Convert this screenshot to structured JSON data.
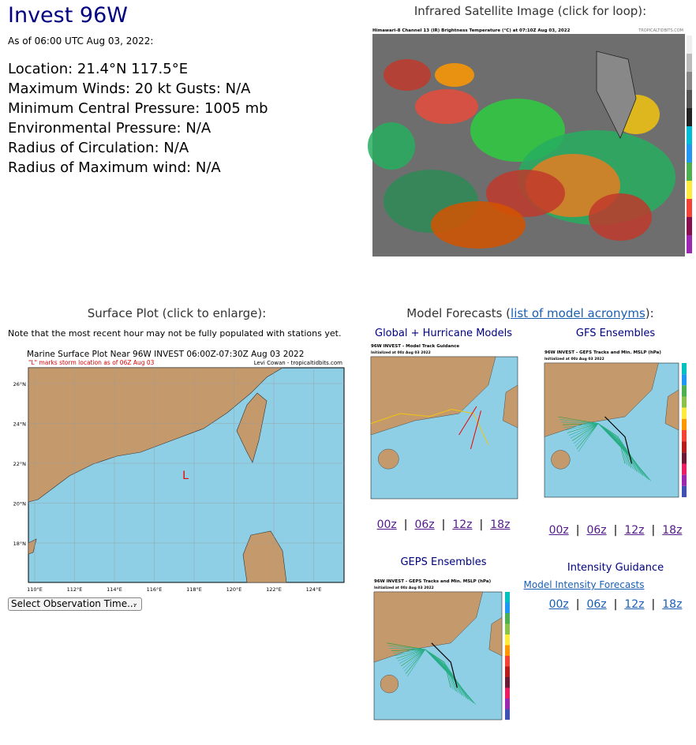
{
  "header": {
    "title": "Invest 96W",
    "as_of": "As of 06:00 UTC Aug 03, 2022:"
  },
  "details": [
    "Location: 21.4°N 117.5°E",
    "Maximum Winds: 20 kt  Gusts: N/A",
    "Minimum Central Pressure: 1005 mb",
    "Environmental Pressure: N/A",
    "Radius of Circulation: N/A",
    "Radius of Maximum wind: N/A"
  ],
  "satellite": {
    "heading": "Infrared Satellite Image (click for loop):",
    "image_title": "Himawari-8 Channel 13 (IR) Brightness Temperature (°C) at 07:10Z Aug 03, 2022",
    "credit": "TROPICALTIDBITS.COM"
  },
  "surface": {
    "heading": "Surface Plot (click to enlarge):",
    "note": "Note that the most recent hour may not be fully populated with stations yet.",
    "plot_title": "Marine Surface Plot Near 96W INVEST 06:00Z-07:30Z Aug 03 2022",
    "plot_subtitle": "\"L\" marks storm location as of 06Z Aug 03",
    "credit": "Levi Cowan - tropicaltidbits.com",
    "storm_marker": "L",
    "lat_labels": [
      "26°N",
      "24°N",
      "22°N",
      "20°N",
      "18°N"
    ],
    "lon_labels": [
      "110°E",
      "112°E",
      "114°E",
      "116°E",
      "118°E",
      "120°E",
      "122°E",
      "124°E"
    ],
    "select": "Select Observation Time..."
  },
  "models": {
    "heading_prefix": "Model Forecasts (",
    "heading_link": "list of model acronyms",
    "heading_suffix": "):",
    "separator": "|",
    "panels": [
      {
        "title": "Global + Hurricane Models",
        "image_title": "96W INVEST - Model Track Guidance",
        "image_subtitle": "Initialized at 00z Aug 03 2022",
        "links": [
          "00z",
          "06z",
          "12z",
          "18z"
        ]
      },
      {
        "title": "GFS Ensembles",
        "image_title": "96W INVEST - GEFS Tracks and Min. MSLP (hPa)",
        "image_subtitle": "Initialized at 00z Aug 03 2022",
        "links": [
          "00z",
          "06z",
          "12z",
          "18z"
        ]
      },
      {
        "title": "GEPS Ensembles",
        "image_title": "96W INVEST - GEPS Tracks and Min. MSLP (hPa)",
        "image_subtitle": "Initialized at 00z Aug 03 2022"
      }
    ],
    "intensity": {
      "title": "Intensity Guidance",
      "link": "Model Intensity Forecasts",
      "links": [
        "00z",
        "06z",
        "12z",
        "18z"
      ]
    }
  }
}
